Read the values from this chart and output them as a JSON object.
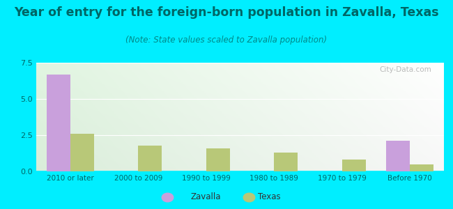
{
  "title": "Year of entry for the foreign-born population in Zavalla, Texas",
  "subtitle": "(Note: State values scaled to Zavalla population)",
  "categories": [
    "2010 or later",
    "2000 to 2009",
    "1990 to 1999",
    "1980 to 1989",
    "1970 to 1979",
    "Before 1970"
  ],
  "zavalla_values": [
    6.7,
    0,
    0,
    0,
    0,
    2.1
  ],
  "texas_values": [
    2.6,
    1.8,
    1.6,
    1.3,
    0.8,
    0.5
  ],
  "zavalla_color": "#c9a0dc",
  "texas_color": "#b8c878",
  "background_color": "#00eeff",
  "ylim": [
    0,
    7.5
  ],
  "yticks": [
    0,
    2.5,
    5,
    7.5
  ],
  "bar_width": 0.35,
  "title_fontsize": 12.5,
  "subtitle_fontsize": 8.5,
  "title_color": "#006666",
  "subtitle_color": "#008888",
  "tick_label_color": "#006666",
  "watermark_text": "City-Data.com",
  "legend_zavalla": "Zavalla",
  "legend_texas": "Texas"
}
